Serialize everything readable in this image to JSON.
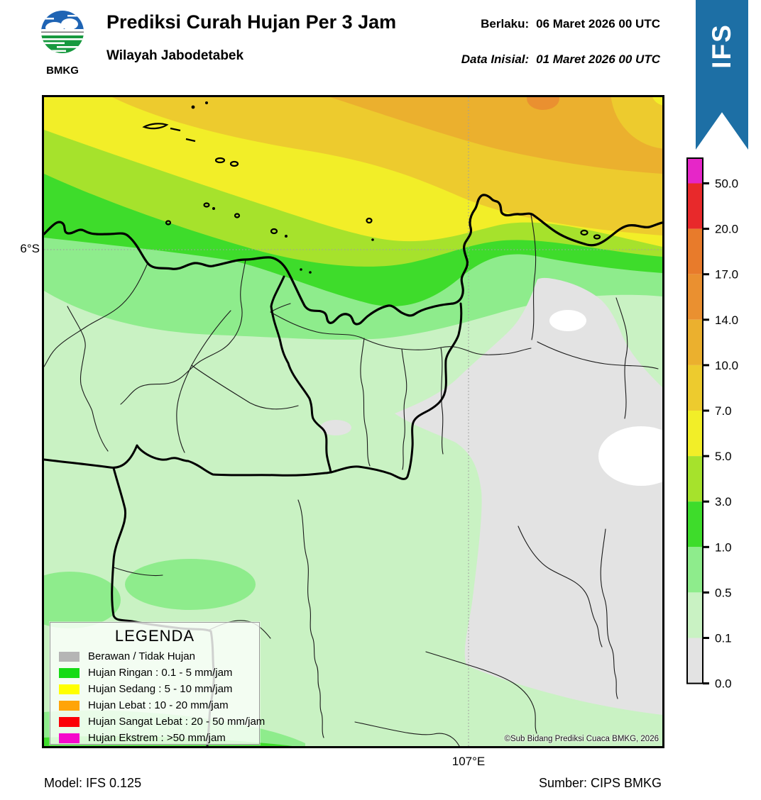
{
  "header": {
    "logo_text": "BMKG",
    "title": "Prediksi Curah Hujan Per 3 Jam",
    "subtitle": "Wilayah Jabodetabek",
    "valid_label": "Berlaku:",
    "valid_value": "06 Maret 2026 00 UTC",
    "init_label": "Data Inisial:",
    "init_value": "01 Maret 2026 00 UTC",
    "ribbon_label": "IFS",
    "ribbon_color": "#1d6fa5"
  },
  "map": {
    "lat_label": "6°S",
    "lon_label": "107°E",
    "copyright": "©Sub Bidang Prediksi Cuaca BMKG, 2026",
    "band_colors": {
      "no_rain_0_01": "#e3e3e3",
      "rain_01_05": "#c9f2c3",
      "rain_05_1": "#8eec8c",
      "rain_1_3": "#3edc2b",
      "rain_3_5": "#a6e22c",
      "rain_5_7": "#f2ee28",
      "rain_7_10": "#edcb2e",
      "rain_10_14": "#ebb02e",
      "rain_14_17": "#ea9030",
      "rain_17_20": "#e87b2b",
      "rain_20_50": "#e8292b",
      "rain_over_50": "#e626c8",
      "dry_white": "#ffffff"
    }
  },
  "colorbar": {
    "tick_labels": [
      "50.0",
      "20.0",
      "17.0",
      "14.0",
      "10.0",
      "7.0",
      "5.0",
      "3.0",
      "1.0",
      "0.5",
      "0.1",
      "0.0"
    ],
    "segment_colors_top_to_bottom": [
      "#e626c8",
      "#e8292b",
      "#e87b2b",
      "#ea9030",
      "#ebb02e",
      "#edcb2e",
      "#f2ee28",
      "#a6e22c",
      "#3edc2b",
      "#8eec8c",
      "#c9f2c3",
      "#e3e3e3"
    ]
  },
  "legend": {
    "title": "LEGENDA",
    "items": [
      {
        "color": "#b5b5b5",
        "label": "Berawan / Tidak Hujan"
      },
      {
        "color": "#15db15",
        "label": "Hujan Ringan : 0.1 - 5 mm/jam"
      },
      {
        "color": "#ffff00",
        "label": "Hujan Sedang : 5 - 10 mm/jam"
      },
      {
        "color": "#ffa408",
        "label": "Hujan Lebat : 10 - 20 mm/jam"
      },
      {
        "color": "#fb0007",
        "label": "Hujan Sangat Lebat : 20 - 50 mm/jam"
      },
      {
        "color": "#f50acb",
        "label": "Hujan Ekstrem : >50 mm/jam"
      }
    ]
  },
  "footer": {
    "model": "Model: IFS 0.125",
    "source": "Sumber: CIPS BMKG"
  }
}
